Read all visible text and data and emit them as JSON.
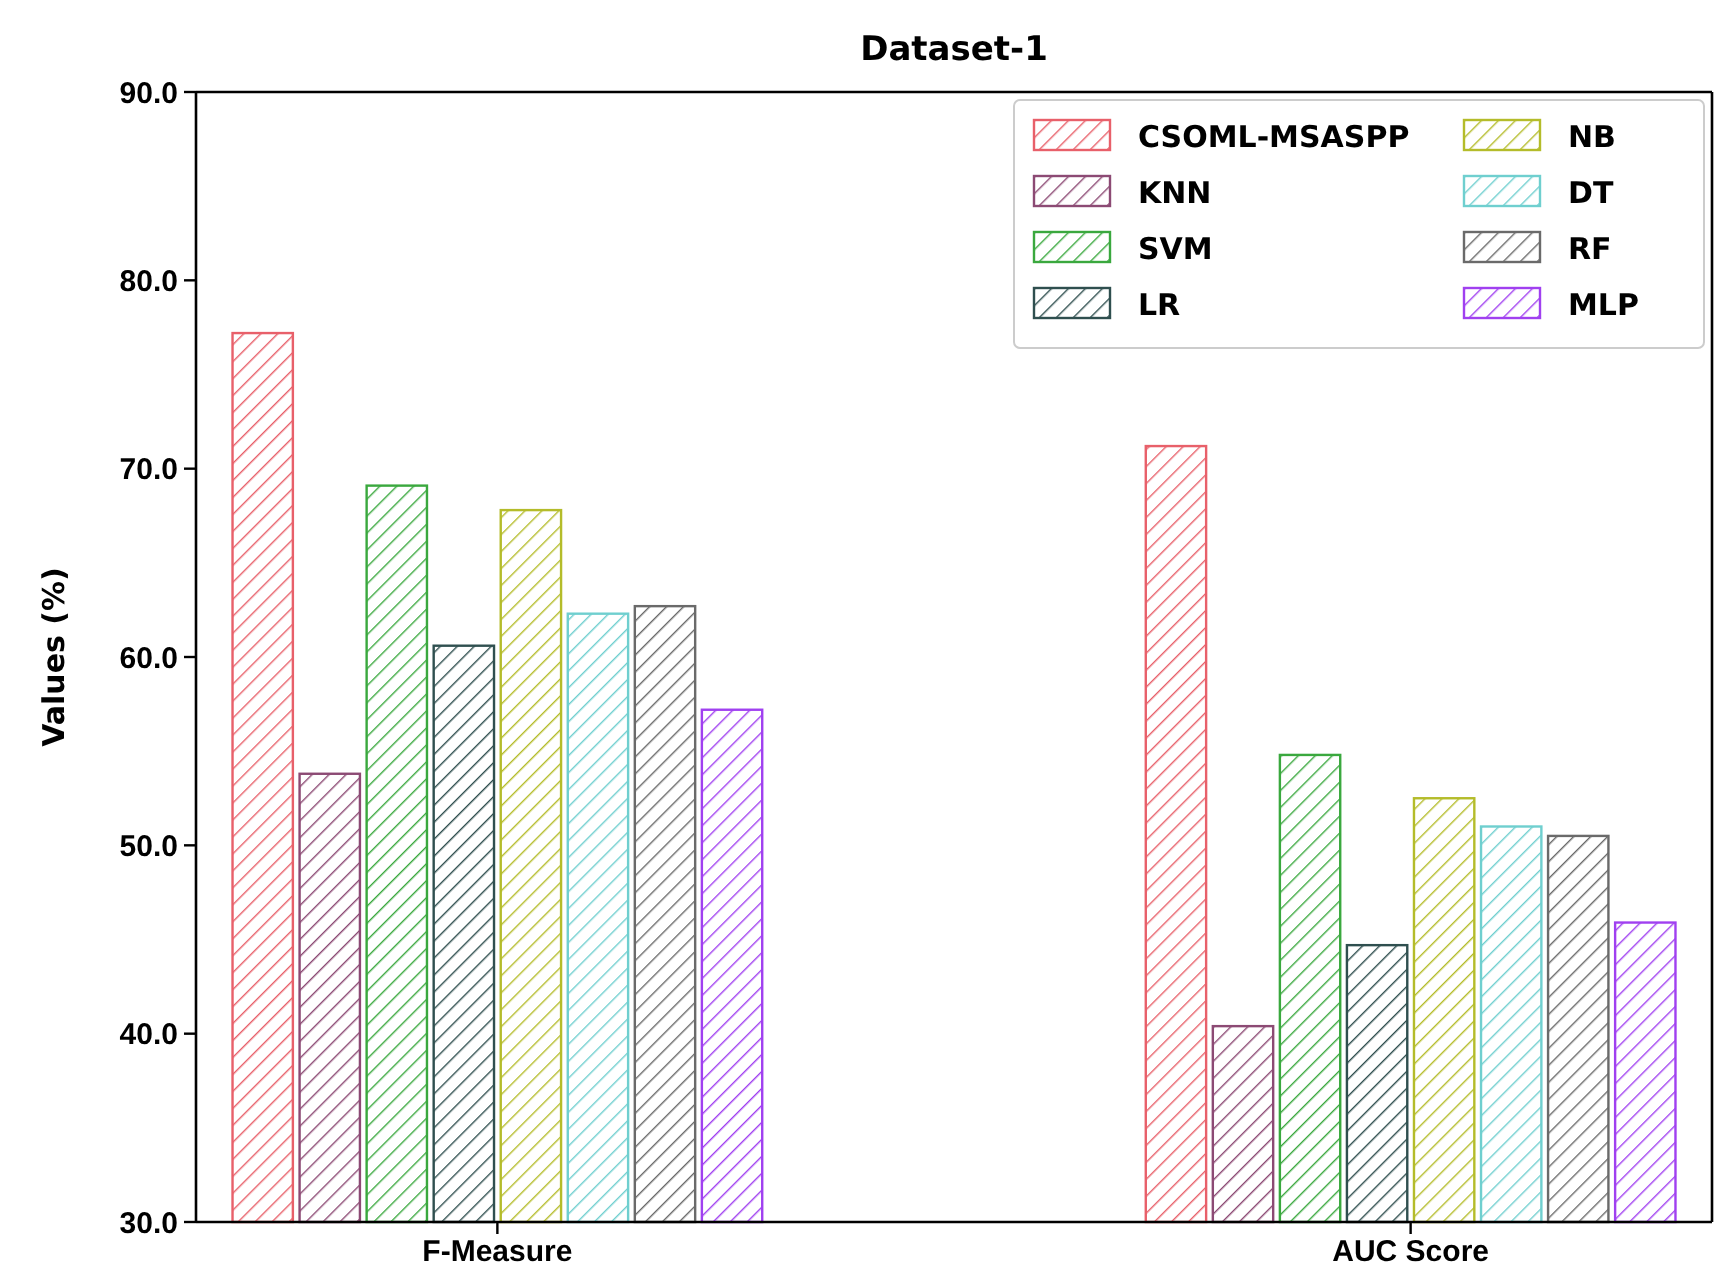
{
  "chart_data": {
    "type": "bar",
    "title": "Dataset-1",
    "ylabel": "Values (%)",
    "categories": [
      "F-Measure",
      "AUC Score"
    ],
    "series": [
      {
        "name": "CSOML-MSASPP",
        "color": "#e8606a",
        "values": [
          77.2,
          71.2
        ]
      },
      {
        "name": "KNN",
        "color": "#8c4a74",
        "values": [
          53.8,
          40.4
        ]
      },
      {
        "name": "SVM",
        "color": "#3aa83e",
        "values": [
          69.1,
          54.8
        ]
      },
      {
        "name": "LR",
        "color": "#2f4f4f",
        "values": [
          60.6,
          44.7
        ]
      },
      {
        "name": "NB",
        "color": "#b4bc2a",
        "values": [
          67.8,
          52.5
        ]
      },
      {
        "name": "DT",
        "color": "#6fcfcf",
        "values": [
          62.3,
          51.0
        ]
      },
      {
        "name": "RF",
        "color": "#6a6a6a",
        "values": [
          62.7,
          50.5
        ]
      },
      {
        "name": "MLP",
        "color": "#a040f0",
        "values": [
          57.2,
          45.9
        ]
      }
    ],
    "ylim": [
      30,
      90
    ],
    "yticks": [
      {
        "value": 30,
        "label": "30.0"
      },
      {
        "value": 40,
        "label": "40.0"
      },
      {
        "value": 50,
        "label": "50.0"
      },
      {
        "value": 60,
        "label": "60.0"
      },
      {
        "value": 70,
        "label": "70.0"
      },
      {
        "value": 80,
        "label": "80.0"
      },
      {
        "value": 90,
        "label": "90.0"
      }
    ],
    "legend": "top right",
    "grid": false
  }
}
